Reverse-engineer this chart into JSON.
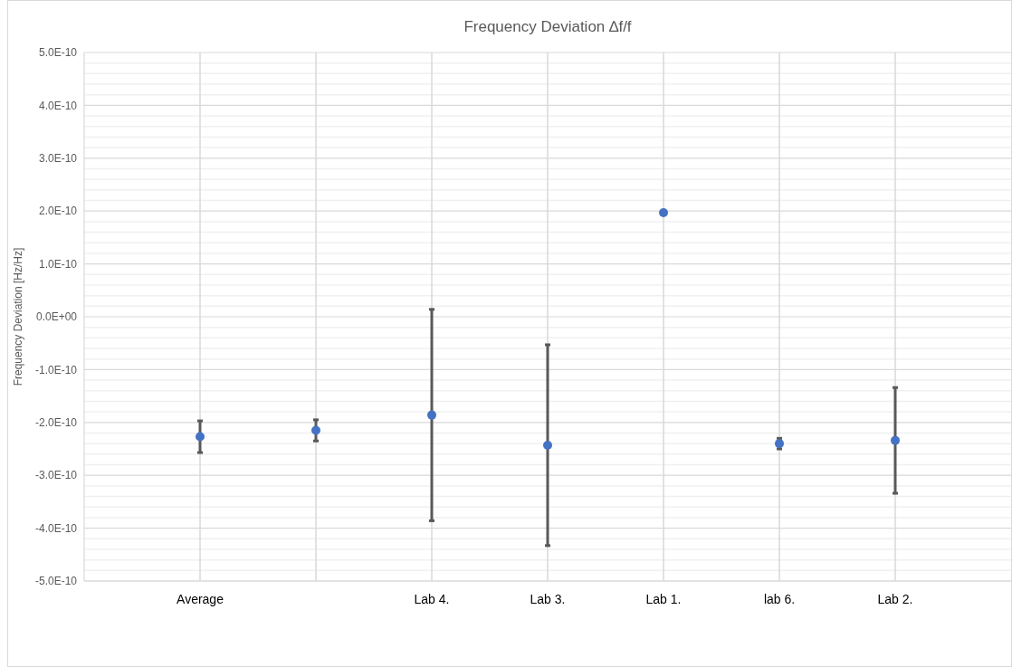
{
  "chart_data": {
    "type": "scatter",
    "title": "Frequency Deviation ∆f/f",
    "ylabel": "Frequency Deviation [Hz/Hz]",
    "categories": [
      "Average",
      null,
      "Lab 4.",
      "Lab 3.",
      "Lab 1.",
      "lab 6.",
      "Lab 2."
    ],
    "series": [
      {
        "color": "#4472c4",
        "values": [
          -2.27e-10,
          -2.15e-10,
          -1.86e-10,
          -2.43e-10,
          1.97e-10,
          -2.4e-10,
          -2.34e-10
        ],
        "errors": [
          3e-11,
          2e-11,
          2e-10,
          1.9e-10,
          null,
          1e-11,
          1e-10
        ]
      }
    ],
    "ylim": [
      -5e-10,
      5e-10
    ],
    "yticks": [
      {
        "value": -5e-10,
        "label": "-5.0E-10"
      },
      {
        "value": -4.8e-10,
        "label": null
      },
      {
        "value": -4.6e-10,
        "label": null
      },
      {
        "value": -4.4e-10,
        "label": null
      },
      {
        "value": -4.2e-10,
        "label": null
      },
      {
        "value": -4e-10,
        "label": "-4.0E-10"
      },
      {
        "value": -3.8e-10,
        "label": null
      },
      {
        "value": -3.6e-10,
        "label": null
      },
      {
        "value": -3.4e-10,
        "label": null
      },
      {
        "value": -3.2e-10,
        "label": null
      },
      {
        "value": -3e-10,
        "label": "-3.0E-10"
      },
      {
        "value": -2.8e-10,
        "label": null
      },
      {
        "value": -2.6e-10,
        "label": null
      },
      {
        "value": -2.4e-10,
        "label": null
      },
      {
        "value": -2.2e-10,
        "label": null
      },
      {
        "value": -2e-10,
        "label": "-2.0E-10"
      },
      {
        "value": -1.8e-10,
        "label": null
      },
      {
        "value": -1.6e-10,
        "label": null
      },
      {
        "value": -1.4e-10,
        "label": null
      },
      {
        "value": -1.2e-10,
        "label": null
      },
      {
        "value": -1e-10,
        "label": "-1.0E-10"
      },
      {
        "value": -8e-11,
        "label": null
      },
      {
        "value": -6e-11,
        "label": null
      },
      {
        "value": -4e-11,
        "label": null
      },
      {
        "value": -2e-11,
        "label": null
      },
      {
        "value": 0,
        "label": "0.0E+00"
      },
      {
        "value": 2e-11,
        "label": null
      },
      {
        "value": 4e-11,
        "label": null
      },
      {
        "value": 6e-11,
        "label": null
      },
      {
        "value": 8e-11,
        "label": null
      },
      {
        "value": 1e-10,
        "label": "1.0E-10"
      },
      {
        "value": 1.2e-10,
        "label": null
      },
      {
        "value": 1.4e-10,
        "label": null
      },
      {
        "value": 1.6e-10,
        "label": null
      },
      {
        "value": 1.8e-10,
        "label": null
      },
      {
        "value": 2e-10,
        "label": "2.0E-10"
      },
      {
        "value": 2.2e-10,
        "label": null
      },
      {
        "value": 2.4e-10,
        "label": null
      },
      {
        "value": 2.6e-10,
        "label": null
      },
      {
        "value": 2.8e-10,
        "label": null
      },
      {
        "value": 3e-10,
        "label": "3.0E-10"
      },
      {
        "value": 3.2e-10,
        "label": null
      },
      {
        "value": 3.4e-10,
        "label": null
      },
      {
        "value": 3.6e-10,
        "label": null
      },
      {
        "value": 3.8e-10,
        "label": null
      },
      {
        "value": 4e-10,
        "label": "4.0E-10"
      },
      {
        "value": 4.2e-10,
        "label": null
      },
      {
        "value": 4.4e-10,
        "label": null
      },
      {
        "value": 4.6e-10,
        "label": null
      },
      {
        "value": 4.8e-10,
        "label": null
      },
      {
        "value": 5e-10,
        "label": "5.0E-10"
      }
    ],
    "grid": true,
    "marker": "circle"
  }
}
